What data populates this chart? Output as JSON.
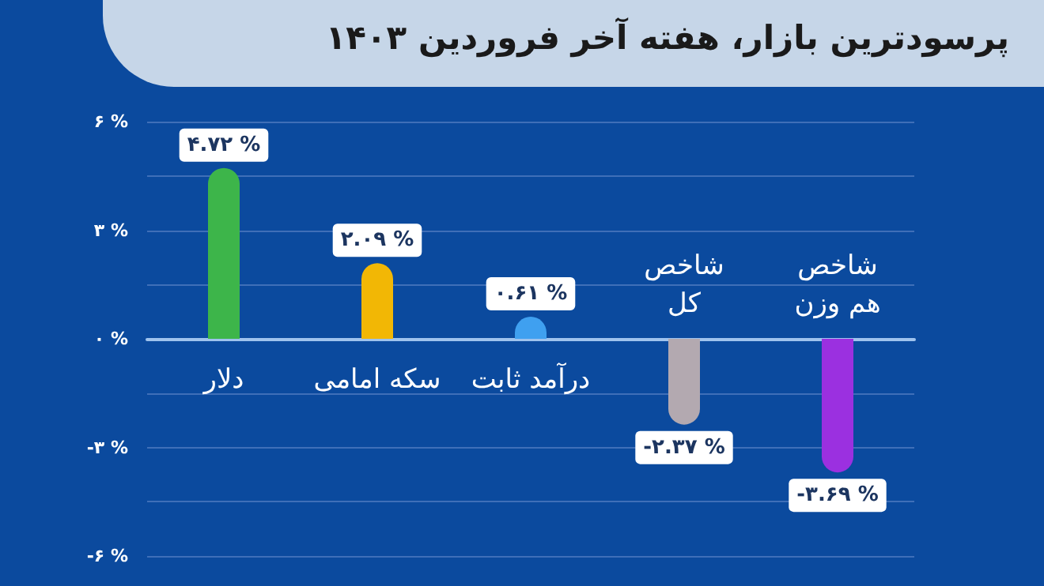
{
  "chart_data": {
    "type": "bar",
    "title": "پرسودترین بازار، هفته آخر فروردین ۱۴۰۳",
    "categories": [
      "دلار",
      "سکه امامی",
      "درآمد ثابت",
      "شاخص کل",
      "شاخص هم وزن"
    ],
    "values": [
      4.72,
      2.09,
      0.61,
      -2.37,
      -3.69
    ],
    "colors": [
      "#3db54a",
      "#f2b705",
      "#3fa0f0",
      "#b3a9b0",
      "#9b30e0"
    ],
    "value_labels": [
      "۴.۷۲ %",
      "۲.۰۹ %",
      "۰.۶۱ %",
      "-۲.۳۷ %",
      "-۳.۶۹ %"
    ],
    "ylim": [
      -6,
      6
    ],
    "yticks": [
      {
        "value": -6,
        "label": "-۶ %"
      },
      {
        "value": -4.5,
        "label": null
      },
      {
        "value": -3,
        "label": "-۳ %"
      },
      {
        "value": -1.5,
        "label": null
      },
      {
        "value": 0,
        "label": "۰ %"
      },
      {
        "value": 1.5,
        "label": null
      },
      {
        "value": 3,
        "label": "۳ %"
      },
      {
        "value": 4.5,
        "label": null
      },
      {
        "value": 6,
        "label": "۶ %"
      }
    ],
    "grid": "y"
  }
}
